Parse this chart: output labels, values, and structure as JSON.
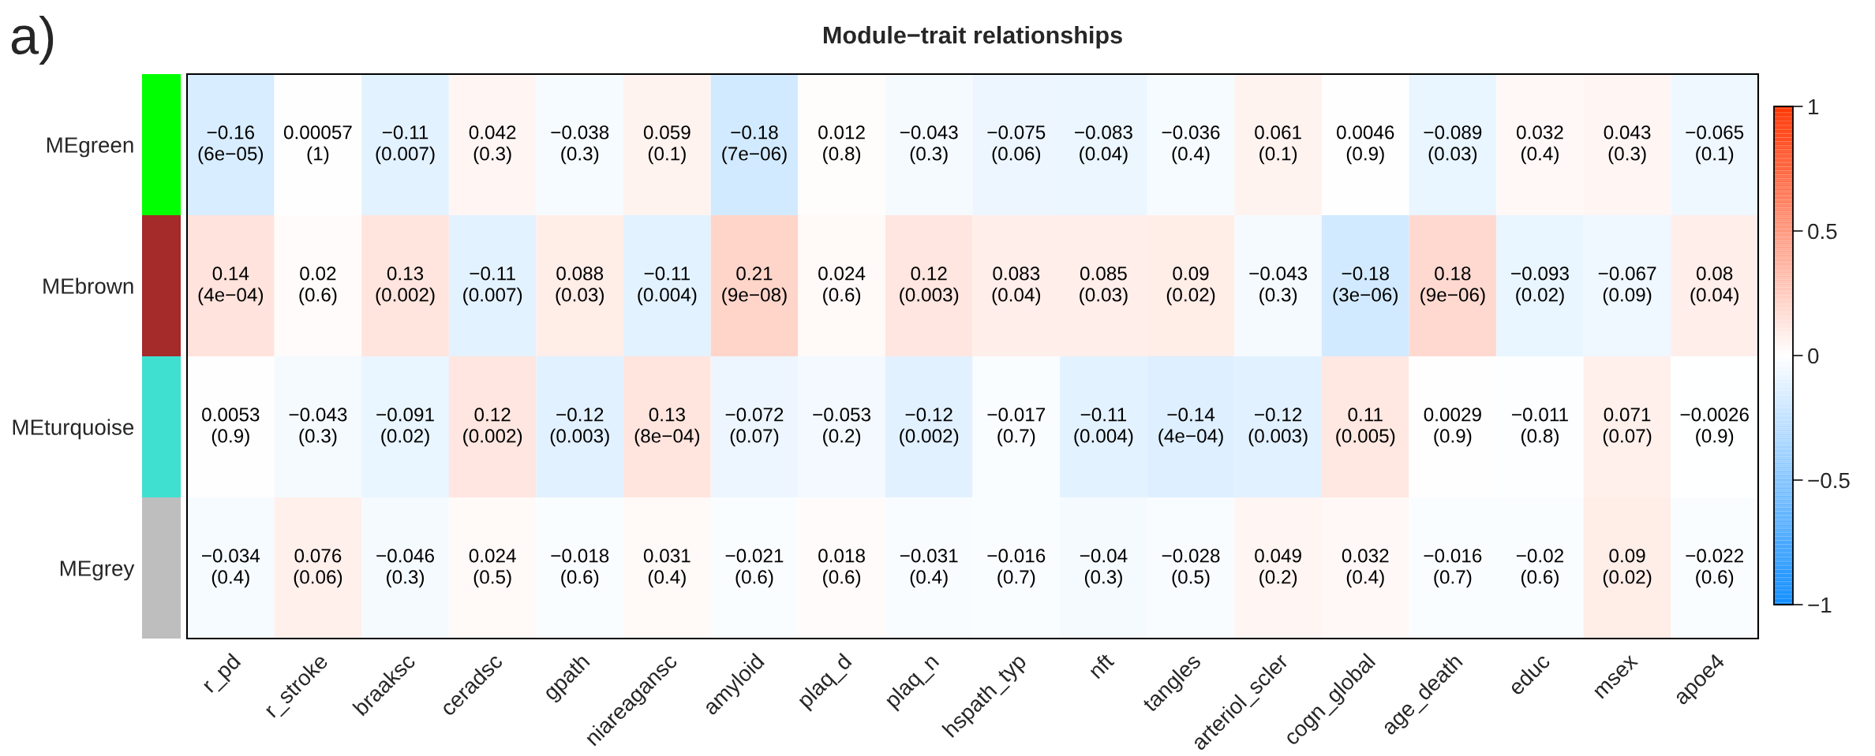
{
  "chart_data": {
    "type": "heatmap",
    "title": "Module−trait relationships",
    "annotations": [
      "a)"
    ],
    "categories": [
      "r_pd",
      "r_stroke",
      "braaksc",
      "ceradsc",
      "gpath",
      "niareagansc",
      "amyloid",
      "plaq_d",
      "plaq_n",
      "hspath_typ",
      "nft",
      "tangles",
      "arteriol_scler",
      "cogn_global",
      "age_death",
      "educ",
      "msex",
      "apoe4"
    ],
    "y_categories": [
      "MEgreen",
      "MEbrown",
      "MEturquoise",
      "MEgrey"
    ],
    "cells": [
      [
        -0.16,
        0.00057,
        -0.11,
        0.042,
        -0.038,
        0.059,
        -0.18,
        0.012,
        -0.043,
        -0.075,
        -0.083,
        -0.036,
        0.061,
        0.0046,
        -0.089,
        0.032,
        0.043,
        -0.065
      ],
      [
        0.14,
        0.02,
        0.13,
        -0.11,
        0.088,
        -0.11,
        0.21,
        0.024,
        0.12,
        0.083,
        0.085,
        0.09,
        -0.043,
        -0.18,
        0.18,
        -0.093,
        -0.067,
        0.08
      ],
      [
        0.0053,
        -0.043,
        -0.091,
        0.12,
        -0.12,
        0.13,
        -0.072,
        -0.053,
        -0.12,
        -0.017,
        -0.11,
        -0.14,
        -0.12,
        0.11,
        0.0029,
        -0.011,
        0.071,
        -0.0026
      ],
      [
        -0.034,
        0.076,
        -0.046,
        0.024,
        -0.018,
        0.031,
        -0.021,
        0.018,
        -0.031,
        -0.016,
        -0.04,
        -0.028,
        0.049,
        0.032,
        -0.016,
        -0.02,
        0.09,
        -0.022
      ]
    ],
    "cell_labels": [
      [
        "−0.16\n(6e−05)",
        "0.00057\n(1)",
        "−0.11\n(0.007)",
        "0.042\n(0.3)",
        "−0.038\n(0.3)",
        "0.059\n(0.1)",
        "−0.18\n(7e−06)",
        "0.012\n(0.8)",
        "−0.043\n(0.3)",
        "−0.075\n(0.06)",
        "−0.083\n(0.04)",
        "−0.036\n(0.4)",
        "0.061\n(0.1)",
        "0.0046\n(0.9)",
        "−0.089\n(0.03)",
        "0.032\n(0.4)",
        "0.043\n(0.3)",
        "−0.065\n(0.1)"
      ],
      [
        "0.14\n(4e−04)",
        "0.02\n(0.6)",
        "0.13\n(0.002)",
        "−0.11\n(0.007)",
        "0.088\n(0.03)",
        "−0.11\n(0.004)",
        "0.21\n(9e−08)",
        "0.024\n(0.6)",
        "0.12\n(0.003)",
        "0.083\n(0.04)",
        "0.085\n(0.03)",
        "0.09\n(0.02)",
        "−0.043\n(0.3)",
        "−0.18\n(3e−06)",
        "0.18\n(9e−06)",
        "−0.093\n(0.02)",
        "−0.067\n(0.09)",
        "0.08\n(0.04)"
      ],
      [
        "0.0053\n(0.9)",
        "−0.043\n(0.3)",
        "−0.091\n(0.02)",
        "0.12\n(0.002)",
        "−0.12\n(0.003)",
        "0.13\n(8e−04)",
        "−0.072\n(0.07)",
        "−0.053\n(0.2)",
        "−0.12\n(0.002)",
        "−0.017\n(0.7)",
        "−0.11\n(0.004)",
        "−0.14\n(4e−04)",
        "−0.12\n(0.003)",
        "0.11\n(0.005)",
        "0.0029\n(0.9)",
        "−0.011\n(0.8)",
        "0.071\n(0.07)",
        "−0.0026\n(0.9)"
      ],
      [
        "−0.034\n(0.4)",
        "0.076\n(0.06)",
        "−0.046\n(0.3)",
        "0.024\n(0.5)",
        "−0.018\n(0.6)",
        "0.031\n(0.4)",
        "−0.021\n(0.6)",
        "0.018\n(0.6)",
        "−0.031\n(0.4)",
        "−0.016\n(0.7)",
        "−0.04\n(0.3)",
        "−0.028\n(0.5)",
        "0.049\n(0.2)",
        "0.032\n(0.4)",
        "−0.016\n(0.7)",
        "−0.02\n(0.6)",
        "0.09\n(0.02)",
        "−0.022\n(0.6)"
      ]
    ],
    "clim": [
      -1,
      1
    ],
    "cticks": [
      {
        "value": -1,
        "label": "−1"
      },
      {
        "value": -0.5,
        "label": "−0.5"
      },
      0,
      0.5,
      1
    ]
  }
}
